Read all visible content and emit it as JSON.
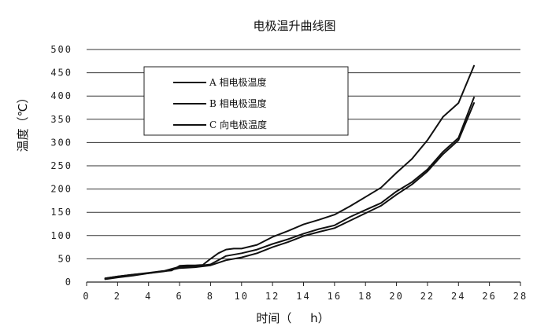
{
  "chart_data": {
    "type": "line",
    "title": "电极温升曲线图",
    "xlabel": "时间（     h）",
    "ylabel": "温度（℃）",
    "xlim": [
      0,
      28
    ],
    "ylim": [
      0,
      500
    ],
    "x_ticks": [
      "0",
      "2",
      "4",
      "6",
      "8",
      "10",
      "12",
      "14",
      "16",
      "18",
      "20",
      "22",
      "24",
      "26",
      "28"
    ],
    "y_ticks": [
      "0",
      "50",
      "100",
      "150",
      "200",
      "250",
      "300",
      "350",
      "400",
      "450",
      "500"
    ],
    "grid": "horizontal",
    "legend_position": "upper-left",
    "series": [
      {
        "name": "A 相电极温度",
        "x": [
          1.2,
          2,
          3,
          4,
          4.8,
          5.5,
          6,
          6.5,
          7,
          7.5,
          8,
          8.5,
          9,
          9.5,
          10,
          11,
          12,
          13,
          14,
          15,
          16,
          17,
          18,
          19,
          20,
          21,
          22,
          23,
          24,
          25
        ],
        "values": [
          8,
          12,
          16,
          19,
          23,
          25,
          35,
          36,
          36,
          37,
          50,
          62,
          70,
          72,
          72,
          80,
          97,
          110,
          124,
          134,
          145,
          163,
          183,
          203,
          235,
          265,
          305,
          355,
          385,
          465
        ]
      },
      {
        "name": "B 相电极温度",
        "x": [
          1.2,
          2,
          3,
          4,
          5,
          6,
          7,
          8,
          9,
          10,
          11,
          12,
          13,
          14,
          15,
          16,
          17,
          18,
          19,
          20,
          21,
          22,
          23,
          24,
          25
        ],
        "values": [
          8,
          12,
          16,
          20,
          24,
          33,
          34,
          38,
          56,
          62,
          70,
          82,
          92,
          104,
          114,
          122,
          140,
          155,
          170,
          195,
          215,
          242,
          280,
          310,
          397
        ]
      },
      {
        "name": "C 向电极温度",
        "x": [
          1.2,
          2,
          3,
          4,
          5,
          6,
          7,
          8,
          9,
          10,
          11,
          12,
          13,
          14,
          15,
          16,
          17,
          18,
          19,
          20,
          21,
          22,
          23,
          24,
          25
        ],
        "values": [
          6,
          10,
          14,
          19,
          23,
          30,
          32,
          36,
          47,
          53,
          62,
          75,
          86,
          99,
          108,
          116,
          132,
          148,
          164,
          188,
          210,
          238,
          275,
          305,
          385
        ]
      }
    ]
  }
}
